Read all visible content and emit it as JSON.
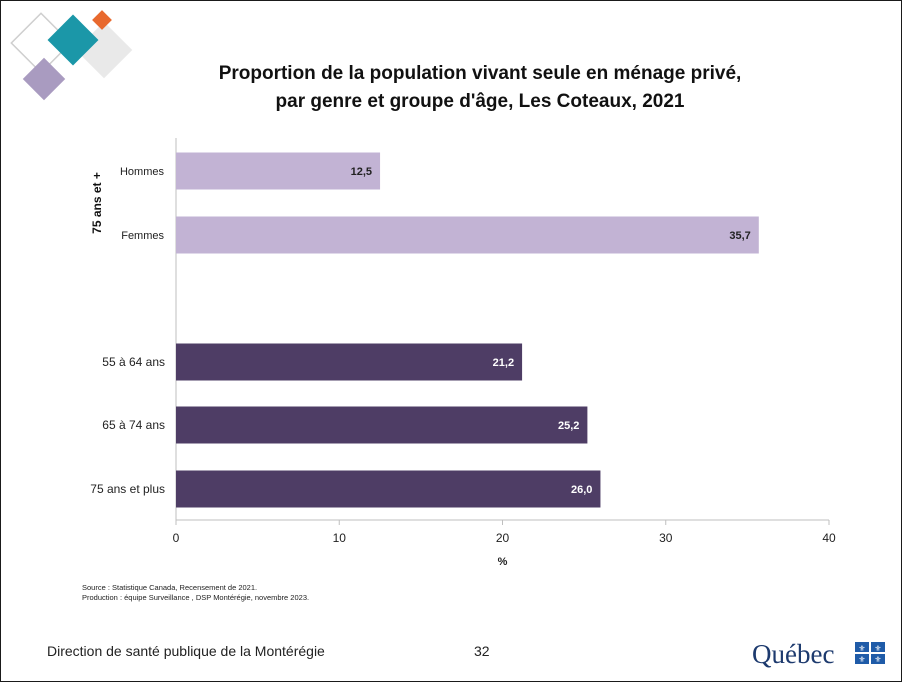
{
  "title_line1": "Proportion de la population vivant seule en ménage privé,",
  "title_line2": "par genre et groupe d'âge, Les Coteaux, 2021",
  "chart_data": {
    "type": "bar",
    "orientation": "horizontal",
    "group_label": "75 ans et +",
    "categories": [
      "Hommes",
      "Femmes",
      "55 à 64 ans",
      "65 à 74 ans",
      "75 ans et plus"
    ],
    "values": [
      12.5,
      35.7,
      21.2,
      25.2,
      26.0
    ],
    "value_labels": [
      "12,5",
      "35,7",
      "21,2",
      "25,2",
      "26,0"
    ],
    "colors": [
      "#c2b3d4",
      "#c2b3d4",
      "#4e3d65",
      "#4e3d65",
      "#4e3d65"
    ],
    "label_colors": [
      "#222222",
      "#222222",
      "#ffffff",
      "#ffffff",
      "#ffffff"
    ],
    "xlim": [
      0,
      40
    ],
    "xticks": [
      "0",
      "10",
      "20",
      "30",
      "40"
    ],
    "xlabel": "%",
    "grid": false
  },
  "source_line1": "Source : Statistique Canada, Recensement de 2021.",
  "source_line2": "Production : équipe Surveillance , DSP Montérégie, novembre 2023.",
  "footer": {
    "org": "Direction de santé publique de la Montérégie",
    "page": "32",
    "logo_text": "Québec"
  },
  "deco_colors": {
    "teal": "#1b97a8",
    "orange": "#e8692e",
    "lavender": "#a99bc0",
    "grey": "#d9d9d9"
  }
}
